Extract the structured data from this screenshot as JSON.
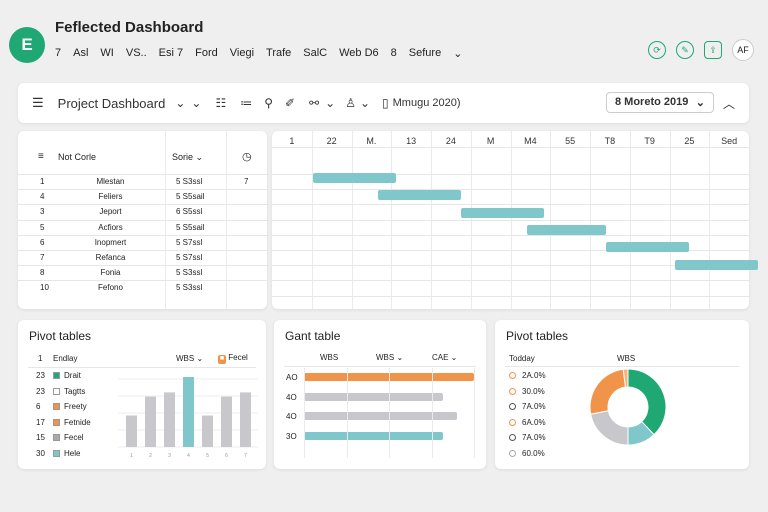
{
  "app": {
    "logo_text": "E",
    "title": "Feflected Dashboard",
    "menu": [
      "7",
      "Asl",
      "WI",
      "VS..",
      "Esi 7",
      "Ford",
      "Viegi",
      "Trafe",
      "SalC",
      "Web D6",
      "8",
      "Sefure"
    ],
    "user_initials": "AF"
  },
  "toolbar": {
    "project_label": "Project Dashboard",
    "date_text": "Mmugu 2020)",
    "project_select": "8 Moreto 2019"
  },
  "grid": {
    "headers": {
      "name": "Not Corle",
      "col2": "Sorie"
    },
    "rows": [
      {
        "id": "1",
        "name": "Mlestan",
        "val": "5 S3ssl",
        "extra": "7"
      },
      {
        "id": "4",
        "name": "Feliers",
        "val": "5 S5sail",
        "extra": ""
      },
      {
        "id": "3",
        "name": "Jeport",
        "val": "6 S5ssl",
        "extra": ""
      },
      {
        "id": "5",
        "name": "Acfiors",
        "val": "5 S5sail",
        "extra": ""
      },
      {
        "id": "6",
        "name": "Inopmert",
        "val": "5 S7ssl",
        "extra": ""
      },
      {
        "id": "7",
        "name": "Refanca",
        "val": "5 S7ssl",
        "extra": ""
      },
      {
        "id": "8",
        "name": "Fonia",
        "val": "5 S3ssl",
        "extra": ""
      },
      {
        "id": "10",
        "name": "Fefono",
        "val": "5 S3ssl",
        "extra": ""
      }
    ]
  },
  "gantt": {
    "columns": [
      "1",
      "22",
      "M.",
      "13",
      "24",
      "M",
      "M4",
      "55",
      "T8",
      "T9",
      "25",
      "Sed"
    ],
    "bars": [
      {
        "start": 0.02,
        "end": 0.21
      },
      {
        "start": 0.17,
        "end": 0.36
      },
      {
        "start": 0.36,
        "end": 0.55
      },
      {
        "start": 0.51,
        "end": 0.69
      },
      {
        "start": 0.69,
        "end": 0.88
      },
      {
        "start": 0.85,
        "end": 1.04
      }
    ]
  },
  "panel1": {
    "title": "Pivot tables",
    "header_id": "1",
    "header_name": "Endlay",
    "header_col": "WBS",
    "filter": "Fecel",
    "items": [
      {
        "n": "23",
        "label": "Drait",
        "color": "#1fa774"
      },
      {
        "n": "23",
        "label": "Tagtts",
        "color": "#ffffff"
      },
      {
        "n": "6",
        "label": "Freety",
        "color": "#f0944a"
      },
      {
        "n": "17",
        "label": "Fetnide",
        "color": "#f0944a"
      },
      {
        "n": "15",
        "label": "Fecel",
        "color": "#aaaaaa"
      },
      {
        "n": "30",
        "label": "Hele",
        "color": "#80c7cc"
      }
    ],
    "bars": [
      0.45,
      0.72,
      0.78,
      1.0,
      0.45,
      0.72,
      0.78,
      0.92
    ],
    "xlabels": [
      "1",
      "2",
      "3",
      "4",
      "5",
      "6",
      "7",
      "8"
    ]
  },
  "panel2": {
    "title": "Gant table",
    "cols": [
      "WBS",
      "WBS",
      "CAE"
    ],
    "ylabels": [
      "AO",
      "4O",
      "4O",
      "3O"
    ],
    "bars": [
      {
        "v": 1.0,
        "color": "#f0944a"
      },
      {
        "v": 0.82,
        "color": "#c8c8cc"
      },
      {
        "v": 0.9,
        "color": "#c8c8cc"
      },
      {
        "v": 0.82,
        "color": "#80c7cc"
      }
    ]
  },
  "panel3": {
    "title": "Pivot tables",
    "header": "Todday",
    "col": "WBS",
    "items": [
      {
        "label": "2A.0%",
        "color": "#f0944a"
      },
      {
        "label": "30.0%",
        "color": "#f0944a"
      },
      {
        "label": "7A.0%",
        "color": "#555555"
      },
      {
        "label": "6A.0%",
        "color": "#f0944a"
      },
      {
        "label": "7A.0%",
        "color": "#555555"
      },
      {
        "label": "60.0%",
        "color": "#aaaaaa"
      }
    ],
    "chart_data": {
      "type": "pie",
      "values": [
        38,
        12,
        22,
        26,
        2
      ],
      "colors": [
        "#1fa774",
        "#80c7cc",
        "#c8c8cc",
        "#f0944a",
        "#f8b27a"
      ]
    }
  }
}
